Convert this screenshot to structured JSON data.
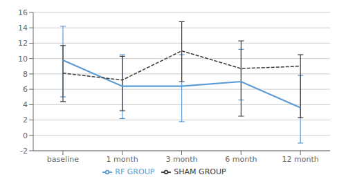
{
  "chart_data": {
    "type": "line",
    "categories": [
      "baseline",
      "1 month",
      "3 month",
      "6 month",
      "12 month"
    ],
    "series": [
      {
        "name": "RF GROUP",
        "color": "#5b9bd5",
        "line_style": "solid",
        "values": [
          9.8,
          6.4,
          6.4,
          7.0,
          3.6
        ],
        "upper": [
          14.2,
          10.5,
          10.5,
          11.2,
          7.8
        ],
        "lower": [
          5.0,
          2.2,
          1.8,
          4.6,
          -1.0
        ]
      },
      {
        "name": "SHAM GROUP",
        "color": "#3a3a3a",
        "line_style": "dashed",
        "values": [
          8.1,
          7.2,
          11.0,
          8.7,
          9.0
        ],
        "upper": [
          11.7,
          10.3,
          14.8,
          12.3,
          10.5
        ],
        "lower": [
          4.4,
          3.2,
          7.0,
          2.5,
          2.3
        ]
      }
    ],
    "ylim": [
      -2,
      16
    ],
    "yticks": [
      -2,
      0,
      2,
      4,
      6,
      8,
      10,
      12,
      14,
      16
    ],
    "grid": true,
    "legend": "bottom"
  }
}
